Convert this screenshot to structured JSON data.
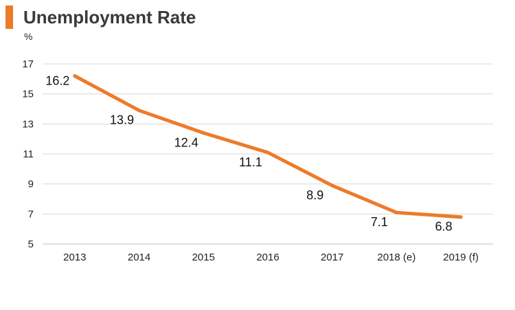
{
  "header": {
    "title": "Unemployment Rate"
  },
  "colors": {
    "accent": "#ec7b2a",
    "grid": "#d9d9d9",
    "axis": "#bfbfbf"
  },
  "chart_data": {
    "type": "line",
    "title": "Unemployment Rate",
    "ylabel": "%",
    "xlabel": "",
    "categories": [
      "2013",
      "2014",
      "2015",
      "2016",
      "2017",
      "2018 (e)",
      "2019 (f)"
    ],
    "series": [
      {
        "values": [
          16.2,
          13.9,
          12.4,
          11.1,
          8.9,
          7.1,
          6.8
        ]
      }
    ],
    "data_labels": [
      "16.2",
      "13.9",
      "12.4",
      "11.1",
      "8.9",
      "7.1",
      "6.8"
    ],
    "ylim": [
      5,
      17
    ],
    "yticks": [
      5,
      7,
      9,
      11,
      13,
      15,
      17
    ],
    "grid": true,
    "legend": "none"
  }
}
